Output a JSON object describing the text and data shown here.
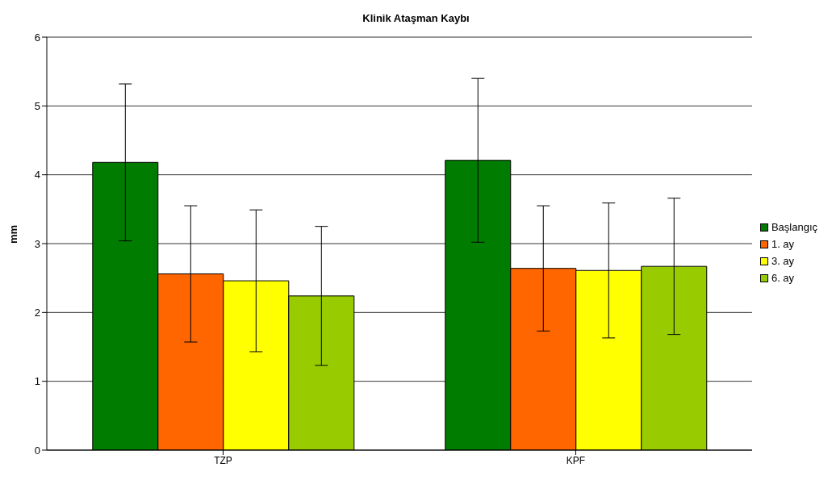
{
  "chart_data": {
    "type": "bar",
    "title": "Klinik Ataşman Kaybı",
    "ylabel": "mm",
    "categories": [
      "TZP",
      "KPF"
    ],
    "series": [
      {
        "name": "Başlangıç",
        "color": "#007c00",
        "values": [
          4.18,
          4.21
        ],
        "errors": [
          1.14,
          1.19
        ]
      },
      {
        "name": "1. ay",
        "color": "#ff6600",
        "values": [
          2.56,
          2.64
        ],
        "errors": [
          0.99,
          0.91
        ]
      },
      {
        "name": "3. ay",
        "color": "#ffff00",
        "values": [
          2.46,
          2.61
        ],
        "errors": [
          1.03,
          0.98
        ]
      },
      {
        "name": "6. ay",
        "color": "#99cc00",
        "values": [
          2.24,
          2.67
        ],
        "errors": [
          1.01,
          0.99
        ]
      }
    ],
    "ylim": [
      0,
      6
    ],
    "yticks": [
      0,
      1,
      2,
      3,
      4,
      5,
      6
    ],
    "grid": "y",
    "legend": "right"
  }
}
